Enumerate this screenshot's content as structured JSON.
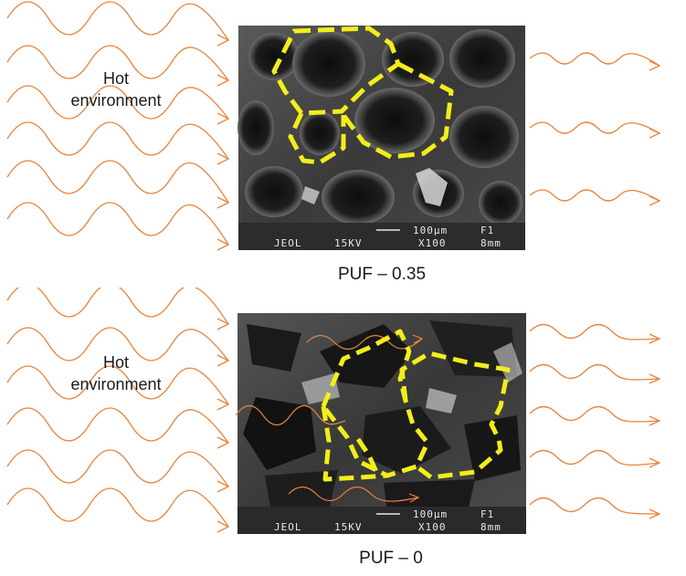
{
  "colors": {
    "wave": "#e8843c",
    "cell_outline": "#f2ee1a",
    "sem_background": "#3a3a3a"
  },
  "panels": [
    {
      "environment_label": [
        "Hot",
        "environment"
      ],
      "micrograph": {
        "scale_text": "100μm",
        "frame_text": "F1",
        "instrument": "JEOL",
        "voltage": "15KV",
        "magnification": "X100",
        "working_distance": "8mm"
      },
      "caption": "PUF – 0.35"
    },
    {
      "environment_label": [
        "Hot",
        "environment"
      ],
      "micrograph": {
        "scale_text": "100μm",
        "frame_text": "F1",
        "instrument": "JEOL",
        "voltage": "15KV",
        "magnification": "X100",
        "working_distance": "8mm"
      },
      "caption": "PUF – 0"
    }
  ]
}
